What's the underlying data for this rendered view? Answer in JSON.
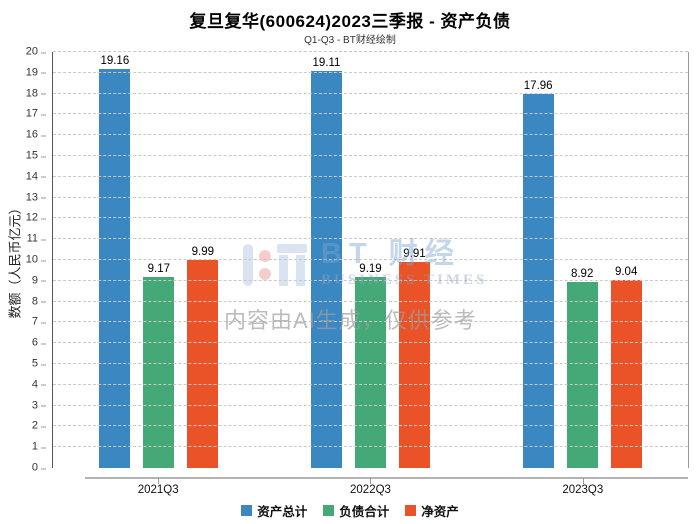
{
  "title": "复旦复华(600624)2023三季报 - 资产负债",
  "subtitle": "Q1-Q3 - BT财经绘制",
  "watermark": {
    "brand": "BT 财经",
    "brand_sub": "BUSINESS TIMES",
    "ai_note": "内容由AI生成，仅供参考"
  },
  "colors": {
    "assets_blue": "#3a87c1",
    "liabilities_green": "#44a877",
    "net_assets_orange": "#ea5228",
    "grid_gray": "#c9c9c9",
    "axis_dark": "#555555",
    "axis_light": "#999999"
  },
  "chart_data": {
    "type": "bar",
    "title": "复旦复华(600624)2023三季报 - 资产负债",
    "subtitle": "Q1-Q3 - BT财经绘制",
    "categories": [
      "2021Q3",
      "2022Q3",
      "2023Q3"
    ],
    "series": [
      {
        "name": "资产总计",
        "color": "#3a87c1",
        "values": [
          19.16,
          19.11,
          17.96
        ]
      },
      {
        "name": "负债合计",
        "color": "#44a877",
        "values": [
          9.17,
          9.19,
          8.92
        ]
      },
      {
        "name": "净资产",
        "color": "#ea5228",
        "values": [
          9.99,
          9.91,
          9.04
        ]
      }
    ],
    "xlabel": "",
    "ylabel": "数额（人民币亿元）",
    "ylim": [
      0,
      20
    ],
    "ytick_step": 1,
    "grid": true,
    "grid_style": "dashed",
    "value_labels": true,
    "value_decimals": 2,
    "legend_position": "bottom"
  }
}
